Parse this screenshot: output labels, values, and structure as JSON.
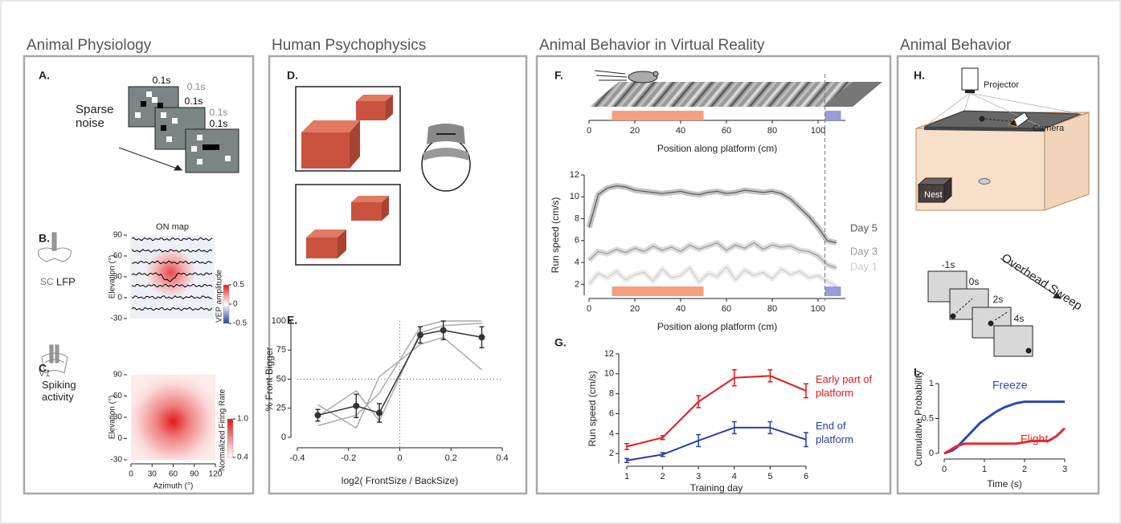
{
  "sections": [
    {
      "title": "Animal Physiology"
    },
    {
      "title": "Human Psychophysics"
    },
    {
      "title": "Animal Behavior in Virtual Reality"
    },
    {
      "title": "Animal Behavior"
    }
  ],
  "panels": {
    "A": {
      "label": "A.",
      "caption": "Sparse noise",
      "frame_times": [
        "0.1s",
        "0.1s",
        "0.1s",
        "0.1s",
        "0.1s"
      ]
    },
    "B": {
      "label": "B.",
      "region": "SC",
      "recording": "LFP",
      "map": {
        "title": "ON map",
        "ylabel": "Elevation (°)",
        "ylim": [
          -30,
          90
        ],
        "yticks": [
          90,
          60,
          30,
          0,
          -30
        ],
        "colorbar": {
          "label": "VEP amplitude",
          "lim": [
            -0.5,
            0.5
          ],
          "ticks": [
            0.5,
            0,
            -0.5
          ]
        }
      }
    },
    "C": {
      "label": "C.",
      "region": "V1",
      "recording": "Spiking activity",
      "map": {
        "xlabel": "Azimuth (°)",
        "ylabel": "Elevation (°)",
        "xlim": [
          0,
          120
        ],
        "xticks": [
          0,
          30,
          60,
          90,
          120
        ],
        "ylim": [
          -30,
          90
        ],
        "yticks": [
          90,
          60,
          30,
          0,
          -30
        ],
        "colorbar": {
          "label": "Normalized Firing Rate",
          "lim": [
            0.4,
            1
          ],
          "ticks": [
            {
              "value": 1,
              "label": "1.0"
            },
            0.4
          ]
        }
      }
    },
    "D": {
      "label": "D."
    },
    "E": {
      "label": "E.",
      "chart": {
        "type": "line",
        "xlabel": "log2( FrontSize / BackSize)",
        "ylabel": "% Front Bigger",
        "xlim": [
          -0.4,
          0.4
        ],
        "xticks": [
          -0.4,
          -0.2,
          0,
          0.2,
          0.4
        ],
        "ylim": [
          0,
          100
        ],
        "yticks": [
          0,
          25,
          50,
          75,
          100
        ],
        "hlines": [
          50
        ],
        "vlines": [
          0
        ],
        "x": [
          -0.32,
          -0.17,
          -0.08,
          0.08,
          0.17,
          0.32
        ],
        "series": [
          {
            "color": "#aaaaaa",
            "values": [
              10,
              19,
              38,
              95,
              100,
              100
            ]
          },
          {
            "color": "#aaaaaa",
            "values": [
              28,
              8,
              52,
              80,
              86,
              58
            ]
          },
          {
            "color": "#aaaaaa",
            "values": [
              18,
              40,
              14,
              90,
              96,
              98
            ]
          },
          {
            "color": "#333333",
            "values": [
              19,
              27,
              21,
              88,
              92,
              86
            ],
            "errors": [
              5,
              10,
              8,
              7,
              8,
              9
            ],
            "markers": true
          }
        ]
      }
    },
    "F": {
      "label": "F.",
      "track": {
        "xlabel": "Position along platform (cm)",
        "xlim": [
          0,
          112
        ],
        "xticks": [
          0,
          20,
          40,
          60,
          80,
          100
        ]
      },
      "regions": [
        {
          "start": 10,
          "end": 50,
          "color": "#f4a07e"
        },
        {
          "start": 103,
          "end": 110,
          "color": "#9c9ad8"
        }
      ],
      "boundary": 103,
      "chart": {
        "type": "line",
        "xlabel": "Position along platform (cm)",
        "ylabel": "Run speed (cm/s)",
        "xlim": [
          0,
          112
        ],
        "xticks": [
          0,
          20,
          40,
          60,
          80,
          100
        ],
        "ylim": [
          1,
          12
        ],
        "yticks": [
          2,
          4,
          6,
          8,
          10,
          12
        ],
        "x": [
          0,
          4,
          8,
          12,
          16,
          20,
          24,
          28,
          32,
          36,
          40,
          44,
          48,
          52,
          56,
          60,
          64,
          68,
          72,
          76,
          80,
          84,
          88,
          92,
          96,
          100,
          104,
          108
        ],
        "series": [
          {
            "name": "Day 5",
            "color": "#555555",
            "values": [
              7.2,
              10.2,
              10.8,
              11.0,
              10.9,
              10.6,
              10.5,
              10.4,
              10.3,
              10.4,
              10.5,
              10.3,
              10.2,
              10.4,
              10.5,
              10.3,
              10.4,
              10.6,
              10.5,
              10.4,
              10.5,
              10.3,
              9.8,
              9.0,
              8.2,
              7.2,
              6.0,
              5.8
            ]
          },
          {
            "name": "Day 3",
            "color": "#999999",
            "values": [
              4.2,
              5.0,
              4.8,
              5.2,
              4.9,
              5.3,
              5.0,
              5.5,
              5.1,
              5.4,
              5.0,
              5.6,
              5.2,
              5.5,
              5.8,
              5.1,
              5.6,
              5.3,
              5.8,
              5.2,
              5.6,
              5.4,
              5.5,
              5.1,
              5.0,
              4.6,
              3.8,
              3.5
            ]
          },
          {
            "name": "Day 1",
            "color": "#cccccc",
            "values": [
              2.0,
              3.0,
              2.6,
              3.2,
              2.4,
              2.9,
              3.1,
              2.3,
              3.4,
              2.6,
              2.8,
              3.5,
              2.2,
              3.0,
              2.7,
              3.6,
              2.4,
              3.3,
              2.8,
              3.1,
              2.5,
              3.4,
              2.9,
              3.2,
              2.6,
              2.8,
              2.3,
              1.8
            ]
          }
        ]
      }
    },
    "G": {
      "label": "G.",
      "chart": {
        "type": "line",
        "xlabel": "Training day",
        "ylabel": "Run speed (cm/s)",
        "xlim": [
          1,
          6
        ],
        "xticks": [
          1,
          2,
          3,
          4,
          5,
          6
        ],
        "ylim": [
          1,
          12
        ],
        "yticks": [
          2,
          4,
          6,
          8,
          10,
          12
        ],
        "x": [
          1,
          2,
          3,
          4,
          5,
          6
        ],
        "series": [
          {
            "name": "Early part of platform",
            "color": "#e41a1c",
            "values": [
              2.7,
              3.6,
              7.2,
              9.6,
              9.8,
              8.3
            ],
            "errors": [
              0.3,
              0.2,
              0.6,
              0.8,
              0.6,
              0.7
            ]
          },
          {
            "name": "End of platform",
            "color": "#2c3e9c",
            "values": [
              1.3,
              1.9,
              3.3,
              4.6,
              4.6,
              3.4
            ],
            "errors": [
              0.2,
              0.2,
              0.6,
              0.6,
              0.6,
              0.7
            ]
          }
        ]
      }
    },
    "H": {
      "label": "H.",
      "projector": "Projector",
      "camera": "Camera",
      "nest": "Nest",
      "sweep": "Overhead Sweep",
      "frame_times": [
        "-1s",
        "0s",
        "2s",
        "4s"
      ]
    },
    "I": {
      "label": "I.",
      "chart": {
        "type": "line",
        "xlabel": "Time (s)",
        "ylabel": "Cumulative Probability",
        "xlim": [
          0,
          3
        ],
        "xticks": [
          0,
          1,
          2,
          3
        ],
        "ylim": [
          0,
          1
        ],
        "yticks": [
          0,
          0.5,
          1
        ],
        "series": [
          {
            "name": "Freeze",
            "color": "#2b4bb0",
            "x": [
              0,
              0.1,
              0.2,
              0.3,
              0.4,
              0.5,
              0.6,
              0.7,
              0.8,
              0.9,
              1.0,
              1.1,
              1.2,
              1.3,
              1.4,
              1.5,
              1.6,
              1.7,
              1.8,
              1.9,
              2.0,
              3.0
            ],
            "values": [
              0,
              0.02,
              0.04,
              0.08,
              0.14,
              0.2,
              0.26,
              0.32,
              0.38,
              0.44,
              0.48,
              0.52,
              0.56,
              0.6,
              0.63,
              0.66,
              0.68,
              0.7,
              0.72,
              0.73,
              0.74,
              0.74
            ]
          },
          {
            "name": "Flight",
            "color": "#e8262b",
            "x": [
              0,
              0.1,
              0.3,
              0.5,
              1.8,
              2.0,
              2.2,
              2.6,
              2.8,
              3.0
            ],
            "values": [
              0,
              0.03,
              0.1,
              0.14,
              0.14,
              0.16,
              0.18,
              0.18,
              0.25,
              0.36
            ]
          }
        ]
      }
    }
  }
}
